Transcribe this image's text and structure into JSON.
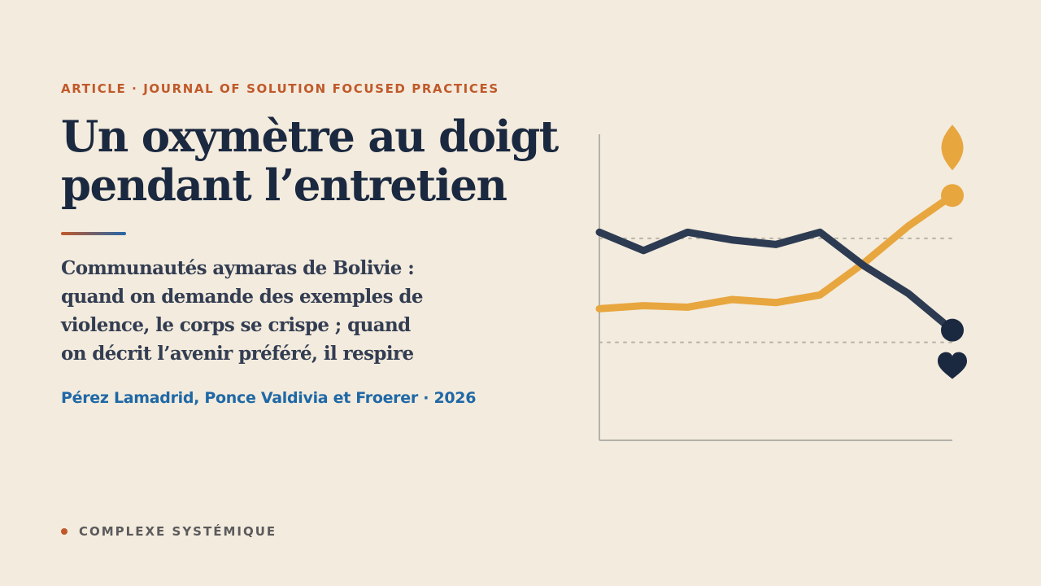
{
  "header": {
    "kicker": "ARTICLE · JOURNAL OF SOLUTION FOCUSED PRACTICES",
    "title_lines": [
      "Un oxymètre au doigt",
      "pendant l’entretien"
    ]
  },
  "subtitle_lines": [
    "Communautés aymaras de Bolivie :",
    "quand on demande des exemples de",
    "violence, le corps se crispe ; quand",
    "on décrit l’avenir préféré, il respire"
  ],
  "authors": "Pérez Lamadrid, Ponce Valdivia et Froerer · 2026",
  "footer": {
    "label": "COMPLEXE SYSTÉMIQUE"
  },
  "colors": {
    "background": "#f3ebdd",
    "accent": "#c0592a",
    "navy": "#1b2940",
    "gold": "#e8a63f",
    "author_blue": "#1f68a6",
    "axis": "#b3b1aa"
  },
  "chart_data": {
    "type": "line",
    "title": "",
    "xlabel": "",
    "ylabel": "",
    "x": [
      0,
      1,
      2,
      3,
      4,
      5,
      6,
      7,
      8
    ],
    "xlim": [
      0,
      8
    ],
    "ylim": [
      0,
      100
    ],
    "reference_lines": [
      66,
      32
    ],
    "grid": false,
    "series": [
      {
        "color": "#e8a63f",
        "values": [
          43,
          44,
          43.5,
          46,
          45,
          47.5,
          58,
          70,
          80
        ],
        "end_marker": "dot",
        "end_icon": "leaf-icon"
      },
      {
        "color": "#2d3b52",
        "values": [
          68,
          62,
          68,
          65.5,
          64,
          68,
          57,
          48,
          36
        ],
        "end_marker": "dot",
        "end_icon": "heart-icon"
      }
    ]
  }
}
